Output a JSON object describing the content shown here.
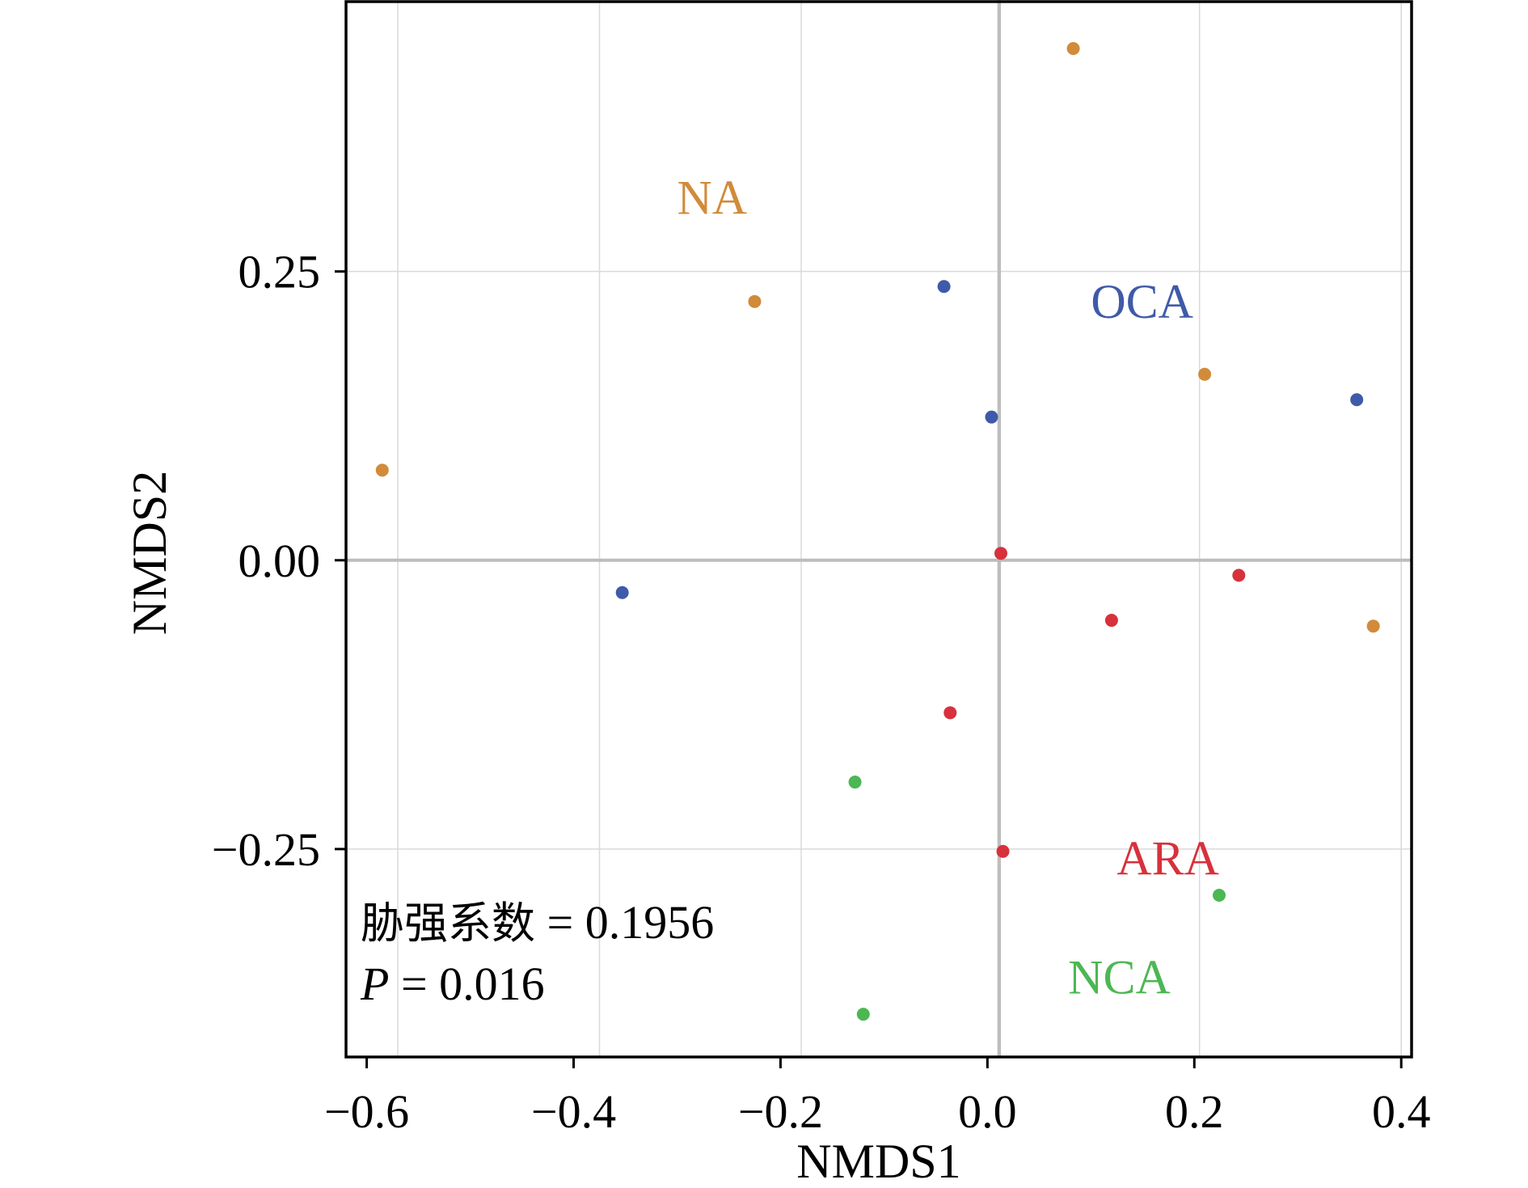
{
  "chart_data": {
    "type": "scatter",
    "title": "",
    "xlabel": "NMDS1",
    "ylabel": "NMDS2",
    "xlim": [
      -0.62,
      0.41
    ],
    "ylim": [
      -0.43,
      0.485
    ],
    "xticks": [
      -0.6,
      -0.4,
      -0.2,
      0.0,
      0.2,
      0.4
    ],
    "xtick_labels": [
      "−0.6",
      "−0.4",
      "−0.2",
      "0.0",
      "0.2",
      "0.4"
    ],
    "yticks": [
      -0.25,
      0.0,
      0.25
    ],
    "ytick_labels": [
      "−0.25",
      "0.00",
      "0.25"
    ],
    "x_gridlines": [
      -0.57,
      -0.375,
      -0.18,
      0.01,
      0.205,
      0.4
    ],
    "y_gridlines": [
      -0.25,
      0.0,
      0.25
    ],
    "grid": true,
    "zero_line_x": 0.0115,
    "zero_line_y": 0.0,
    "series": [
      {
        "name": "NA",
        "color": "#d18b3a",
        "points": [
          [
            0.083,
            0.443
          ],
          [
            -0.225,
            0.224
          ],
          [
            -0.585,
            0.078
          ],
          [
            0.21,
            0.161
          ],
          [
            0.373,
            -0.057
          ]
        ]
      },
      {
        "name": "OCA",
        "color": "#3f5aa8",
        "points": [
          [
            -0.042,
            0.237
          ],
          [
            0.004,
            0.124
          ],
          [
            0.357,
            0.139
          ],
          [
            -0.353,
            -0.028
          ]
        ]
      },
      {
        "name": "ARA",
        "color": "#d7313c",
        "points": [
          [
            0.013,
            0.006
          ],
          [
            0.243,
            -0.013
          ],
          [
            0.12,
            -0.052
          ],
          [
            -0.036,
            -0.132
          ],
          [
            0.015,
            -0.252
          ]
        ]
      },
      {
        "name": "NCA",
        "color": "#4cb753",
        "points": [
          [
            -0.128,
            -0.192
          ],
          [
            0.224,
            -0.29
          ],
          [
            -0.12,
            -0.393
          ]
        ]
      }
    ],
    "group_labels": [
      {
        "text": "NA",
        "color": "#d18b3a",
        "x": -0.3,
        "y": 0.3
      },
      {
        "text": "OCA",
        "color": "#3f5aa8",
        "x": 0.1,
        "y": 0.21
      },
      {
        "text": "ARA",
        "color": "#d7313c",
        "x": 0.125,
        "y": -0.272
      },
      {
        "text": "NCA",
        "color": "#4cb753",
        "x": 0.078,
        "y": -0.375
      }
    ],
    "annotations": {
      "stat_label": "胁强系数",
      "stat_value": " = 0.1956",
      "p_label": "P",
      "p_value": " = 0.016"
    }
  }
}
